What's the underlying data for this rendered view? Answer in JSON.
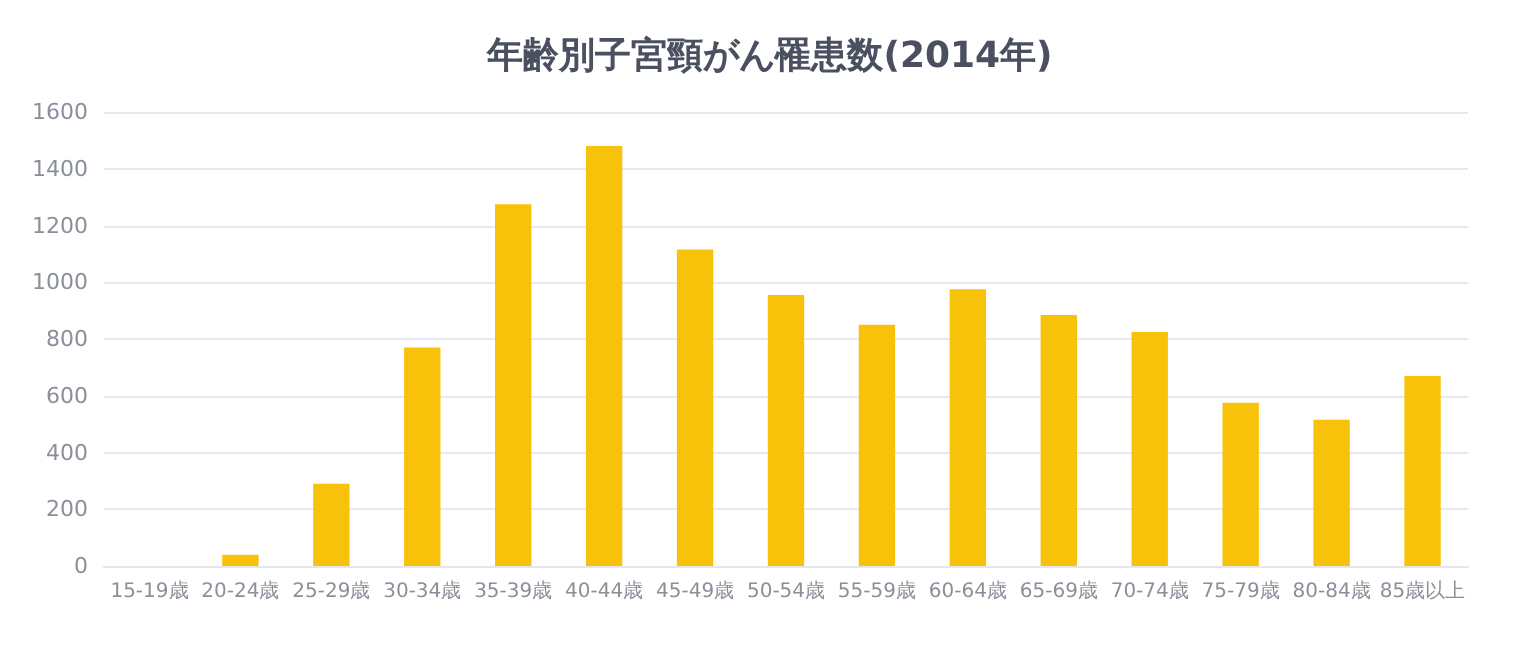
{
  "chart_data": {
    "type": "bar",
    "title": "年齢別子宮頸がん罹患数(2014年)",
    "categories": [
      "15-19歳",
      "20-24歳",
      "25-29歳",
      "30-34歳",
      "35-39歳",
      "40-44歳",
      "45-49歳",
      "50-54歳",
      "55-59歳",
      "60-64歳",
      "65-69歳",
      "70-74歳",
      "75-79歳",
      "80-84歳",
      "85歳以上"
    ],
    "values": [
      0,
      40,
      290,
      770,
      1275,
      1480,
      1115,
      955,
      850,
      975,
      885,
      825,
      575,
      515,
      670
    ],
    "color": "#f9c20a",
    "ylim": [
      0,
      1600
    ],
    "yticks": [
      0,
      200,
      400,
      600,
      800,
      1000,
      1200,
      1400,
      1600
    ],
    "grid": "y"
  }
}
